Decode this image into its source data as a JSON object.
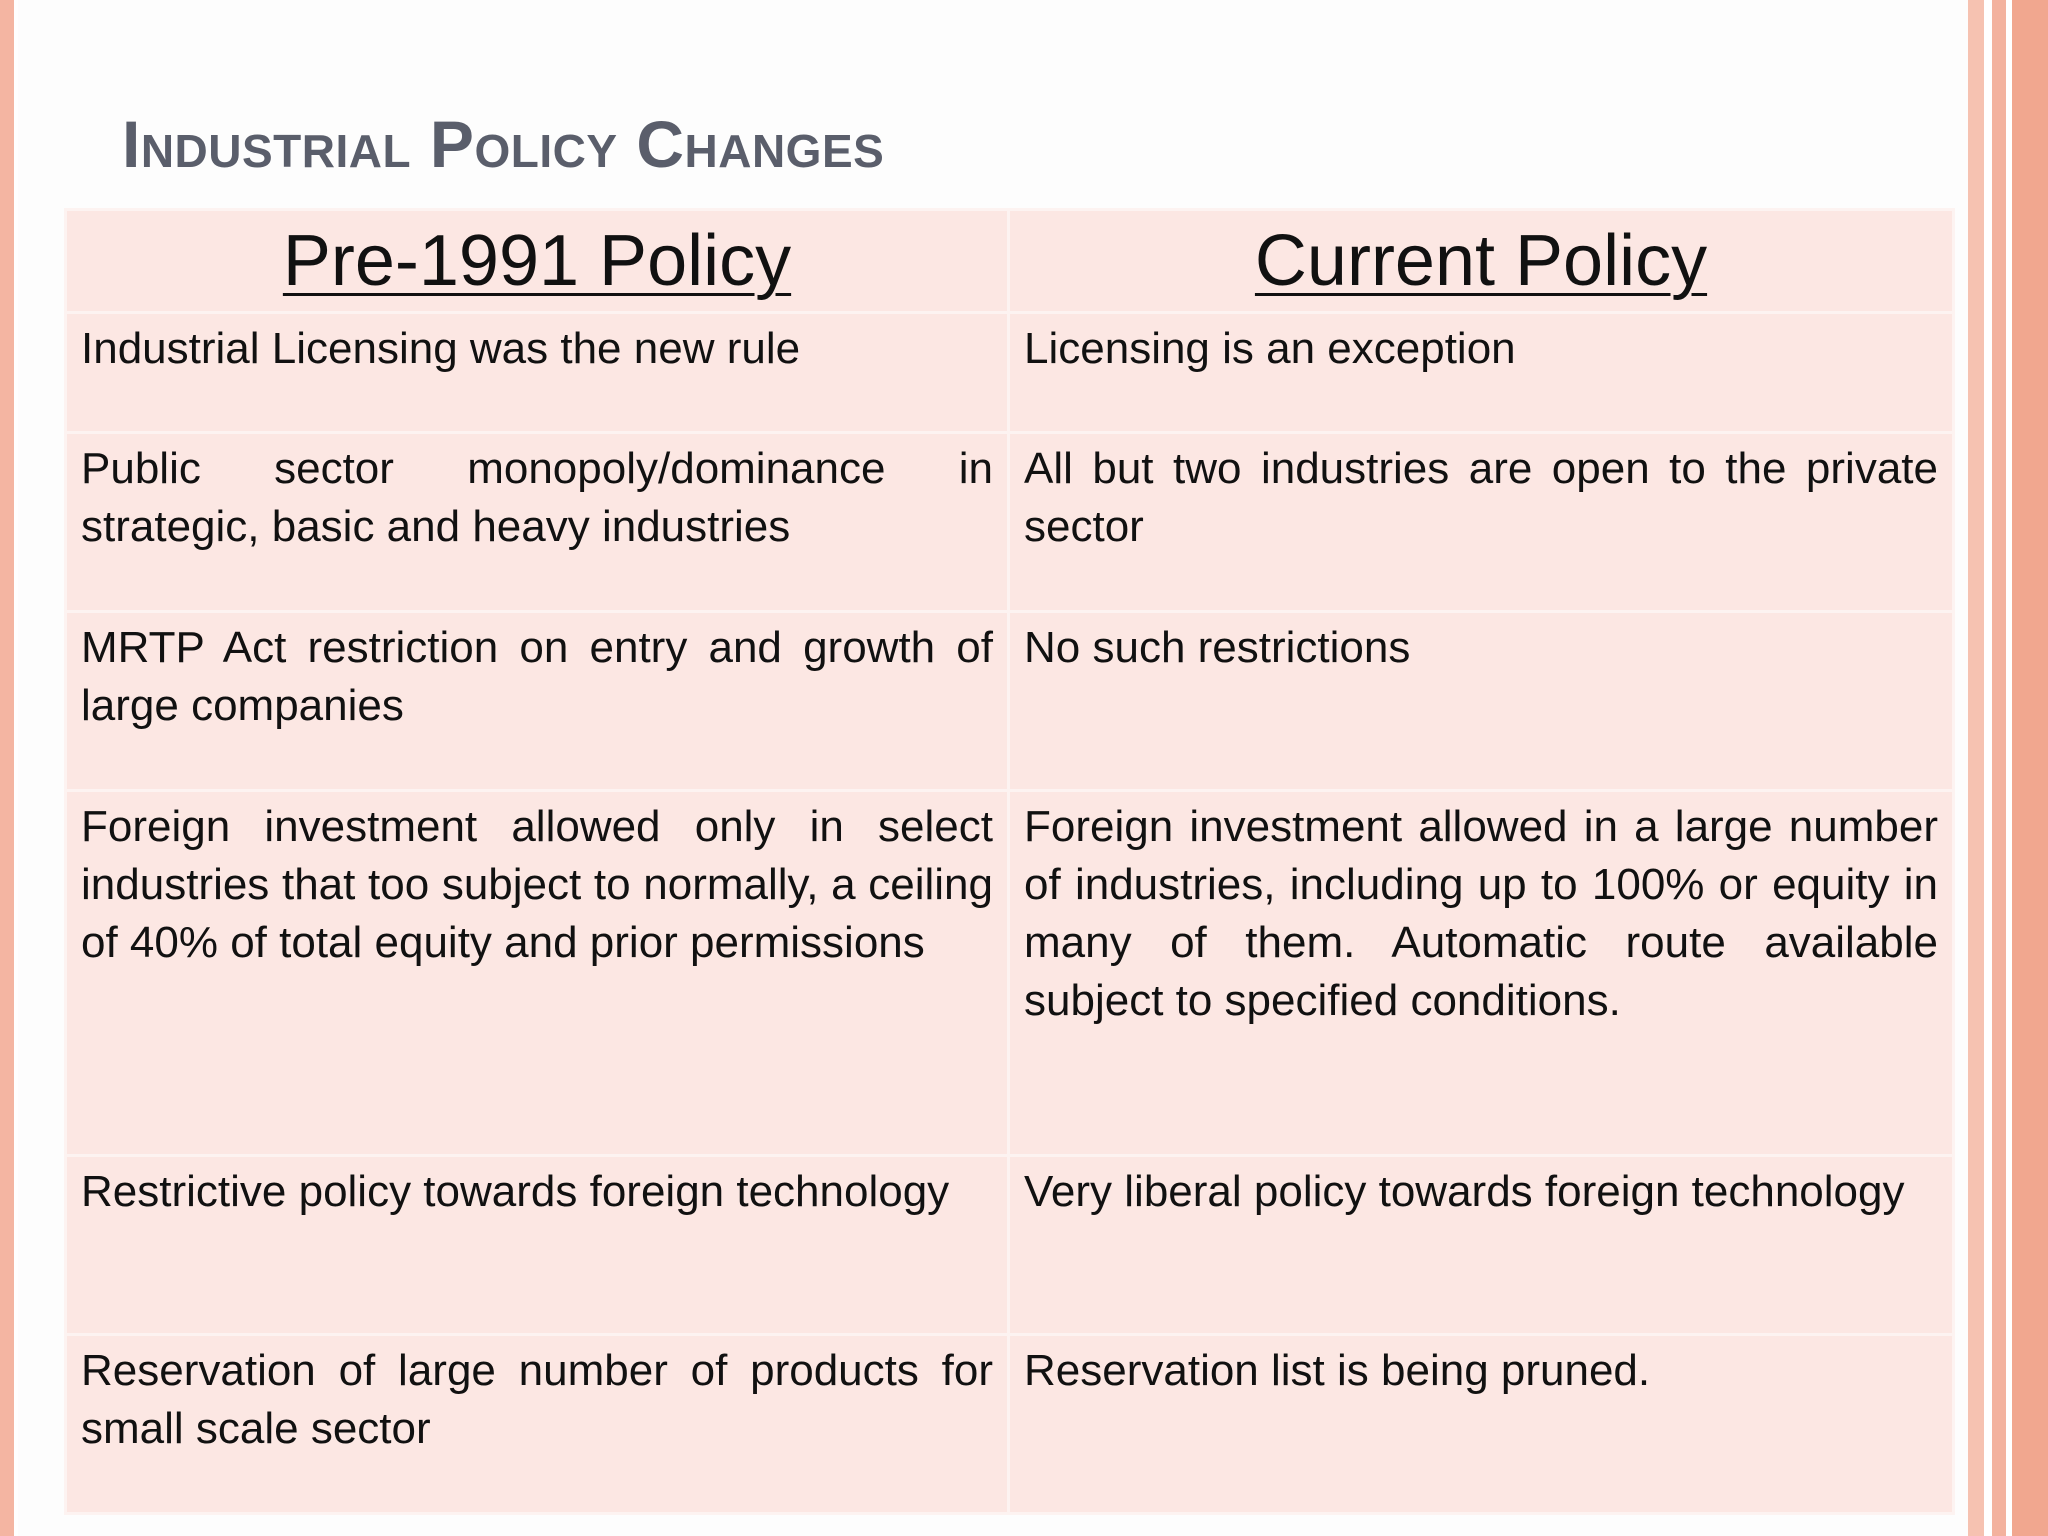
{
  "slide": {
    "title": "Industrial Policy Changes",
    "accent_color": "#f4b5a2",
    "cell_background": "#fce7e3",
    "title_color": "#5a5e6b"
  },
  "table": {
    "headers": [
      "Pre-1991 Policy",
      "Current Policy"
    ],
    "rows": [
      {
        "pre": "Industrial Licensing was the new rule",
        "current": "Licensing is an exception"
      },
      {
        "pre": "Public sector monopoly/dominance in strategic, basic and heavy industries",
        "current": "All but two industries are open to the private sector"
      },
      {
        "pre": "MRTP Act restriction on entry and growth of large companies",
        "current": "No such restrictions"
      },
      {
        "pre": "Foreign investment allowed only in select industries that too subject to normally, a ceiling of 40% of total equity and prior permissions",
        "current": "Foreign investment allowed in a large number of industries, including up to 100% or equity in many of them. Automatic route available subject to specified conditions."
      },
      {
        "pre": "Restrictive policy towards foreign technology",
        "current": "Very liberal policy towards foreign technology"
      },
      {
        "pre": "Reservation of large number of products for small scale sector",
        "current": "Reservation list is being pruned."
      }
    ]
  }
}
